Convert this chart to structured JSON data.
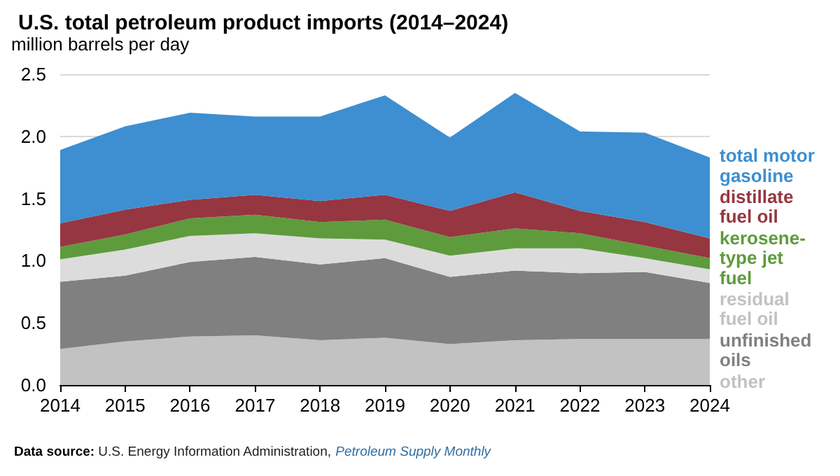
{
  "chart_data": {
    "type": "area",
    "stacked": true,
    "title": "U.S. total petroleum product imports (2014–2024)",
    "ylabel": "million barrels per day",
    "x": [
      2014,
      2015,
      2016,
      2017,
      2018,
      2019,
      2020,
      2021,
      2022,
      2023,
      2024
    ],
    "series": [
      {
        "name": "other",
        "color": "#c2c2c2",
        "values": [
          0.29,
          0.35,
          0.39,
          0.4,
          0.36,
          0.38,
          0.33,
          0.36,
          0.37,
          0.37,
          0.37
        ]
      },
      {
        "name": "unfinished oils",
        "color": "#808080",
        "values": [
          0.54,
          0.53,
          0.6,
          0.63,
          0.61,
          0.64,
          0.54,
          0.56,
          0.53,
          0.54,
          0.45
        ]
      },
      {
        "name": "residual fuel oil",
        "color": "#dcdcdc",
        "values": [
          0.18,
          0.21,
          0.21,
          0.19,
          0.21,
          0.15,
          0.17,
          0.18,
          0.2,
          0.11,
          0.11
        ]
      },
      {
        "name": "kerosene-type jet fuel",
        "color": "#5e9b3c",
        "values": [
          0.1,
          0.12,
          0.14,
          0.15,
          0.13,
          0.16,
          0.15,
          0.16,
          0.12,
          0.1,
          0.09
        ]
      },
      {
        "name": "distillate fuel oil",
        "color": "#963641",
        "values": [
          0.19,
          0.2,
          0.15,
          0.16,
          0.17,
          0.2,
          0.21,
          0.29,
          0.18,
          0.19,
          0.16
        ]
      },
      {
        "name": "total motor gasoline",
        "color": "#3d8fd1",
        "values": [
          0.59,
          0.67,
          0.7,
          0.63,
          0.68,
          0.8,
          0.59,
          0.8,
          0.64,
          0.72,
          0.65
        ]
      }
    ],
    "xlim": [
      2014,
      2024
    ],
    "xticks": [
      2014,
      2015,
      2016,
      2017,
      2018,
      2019,
      2020,
      2021,
      2022,
      2023,
      2024
    ],
    "ylim": [
      0,
      2.5
    ],
    "yticks": [
      {
        "value": 0,
        "label": "0.0"
      },
      0.5,
      {
        "value": 1,
        "label": "1.0"
      },
      1.5,
      {
        "value": 2,
        "label": "2.0"
      },
      2.5
    ],
    "grid": "y",
    "legend": "right",
    "annotations": [
      "Data source: U.S. Energy Information Administration, Petroleum Supply Monthly"
    ]
  }
}
